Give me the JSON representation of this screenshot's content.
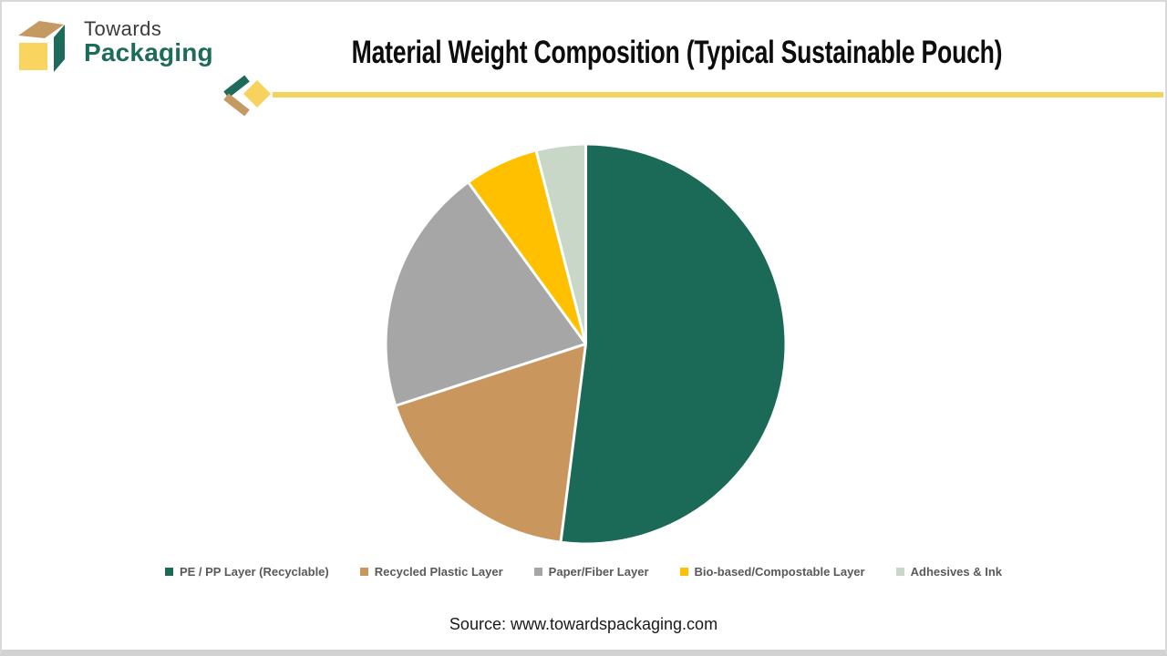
{
  "brand": {
    "line1": "Towards",
    "line2": "Packaging",
    "logo_colors": {
      "top_face": "#c49a62",
      "side_face": "#1e6b5b",
      "front_face": "#f9d45f"
    }
  },
  "header": {
    "title": "Material Weight Composition (Typical Sustainable Pouch)",
    "accent_color": "#f2d35e"
  },
  "chart_data": {
    "type": "pie",
    "title": "Material Weight Composition (Typical Sustainable Pouch)",
    "categories": [
      "PE / PP Layer (Recyclable)",
      "Recycled Plastic Layer",
      "Paper/Fiber Layer",
      "Bio-based/Compostable Layer",
      "Adhesives & Ink"
    ],
    "values": [
      52,
      18,
      20,
      6,
      4
    ],
    "values_note": "percent share estimated from slice angles; no data labels shown on chart",
    "colors": [
      "#1b6a58",
      "#c9975e",
      "#a6a6a6",
      "#ffc000",
      "#c9d7c9"
    ],
    "start_angle_deg": 0,
    "direction": "clockwise",
    "legend_position": "bottom",
    "slice_separator_color": "#ffffff"
  },
  "footer": {
    "source": "Source: www.towardspackaging.com"
  }
}
